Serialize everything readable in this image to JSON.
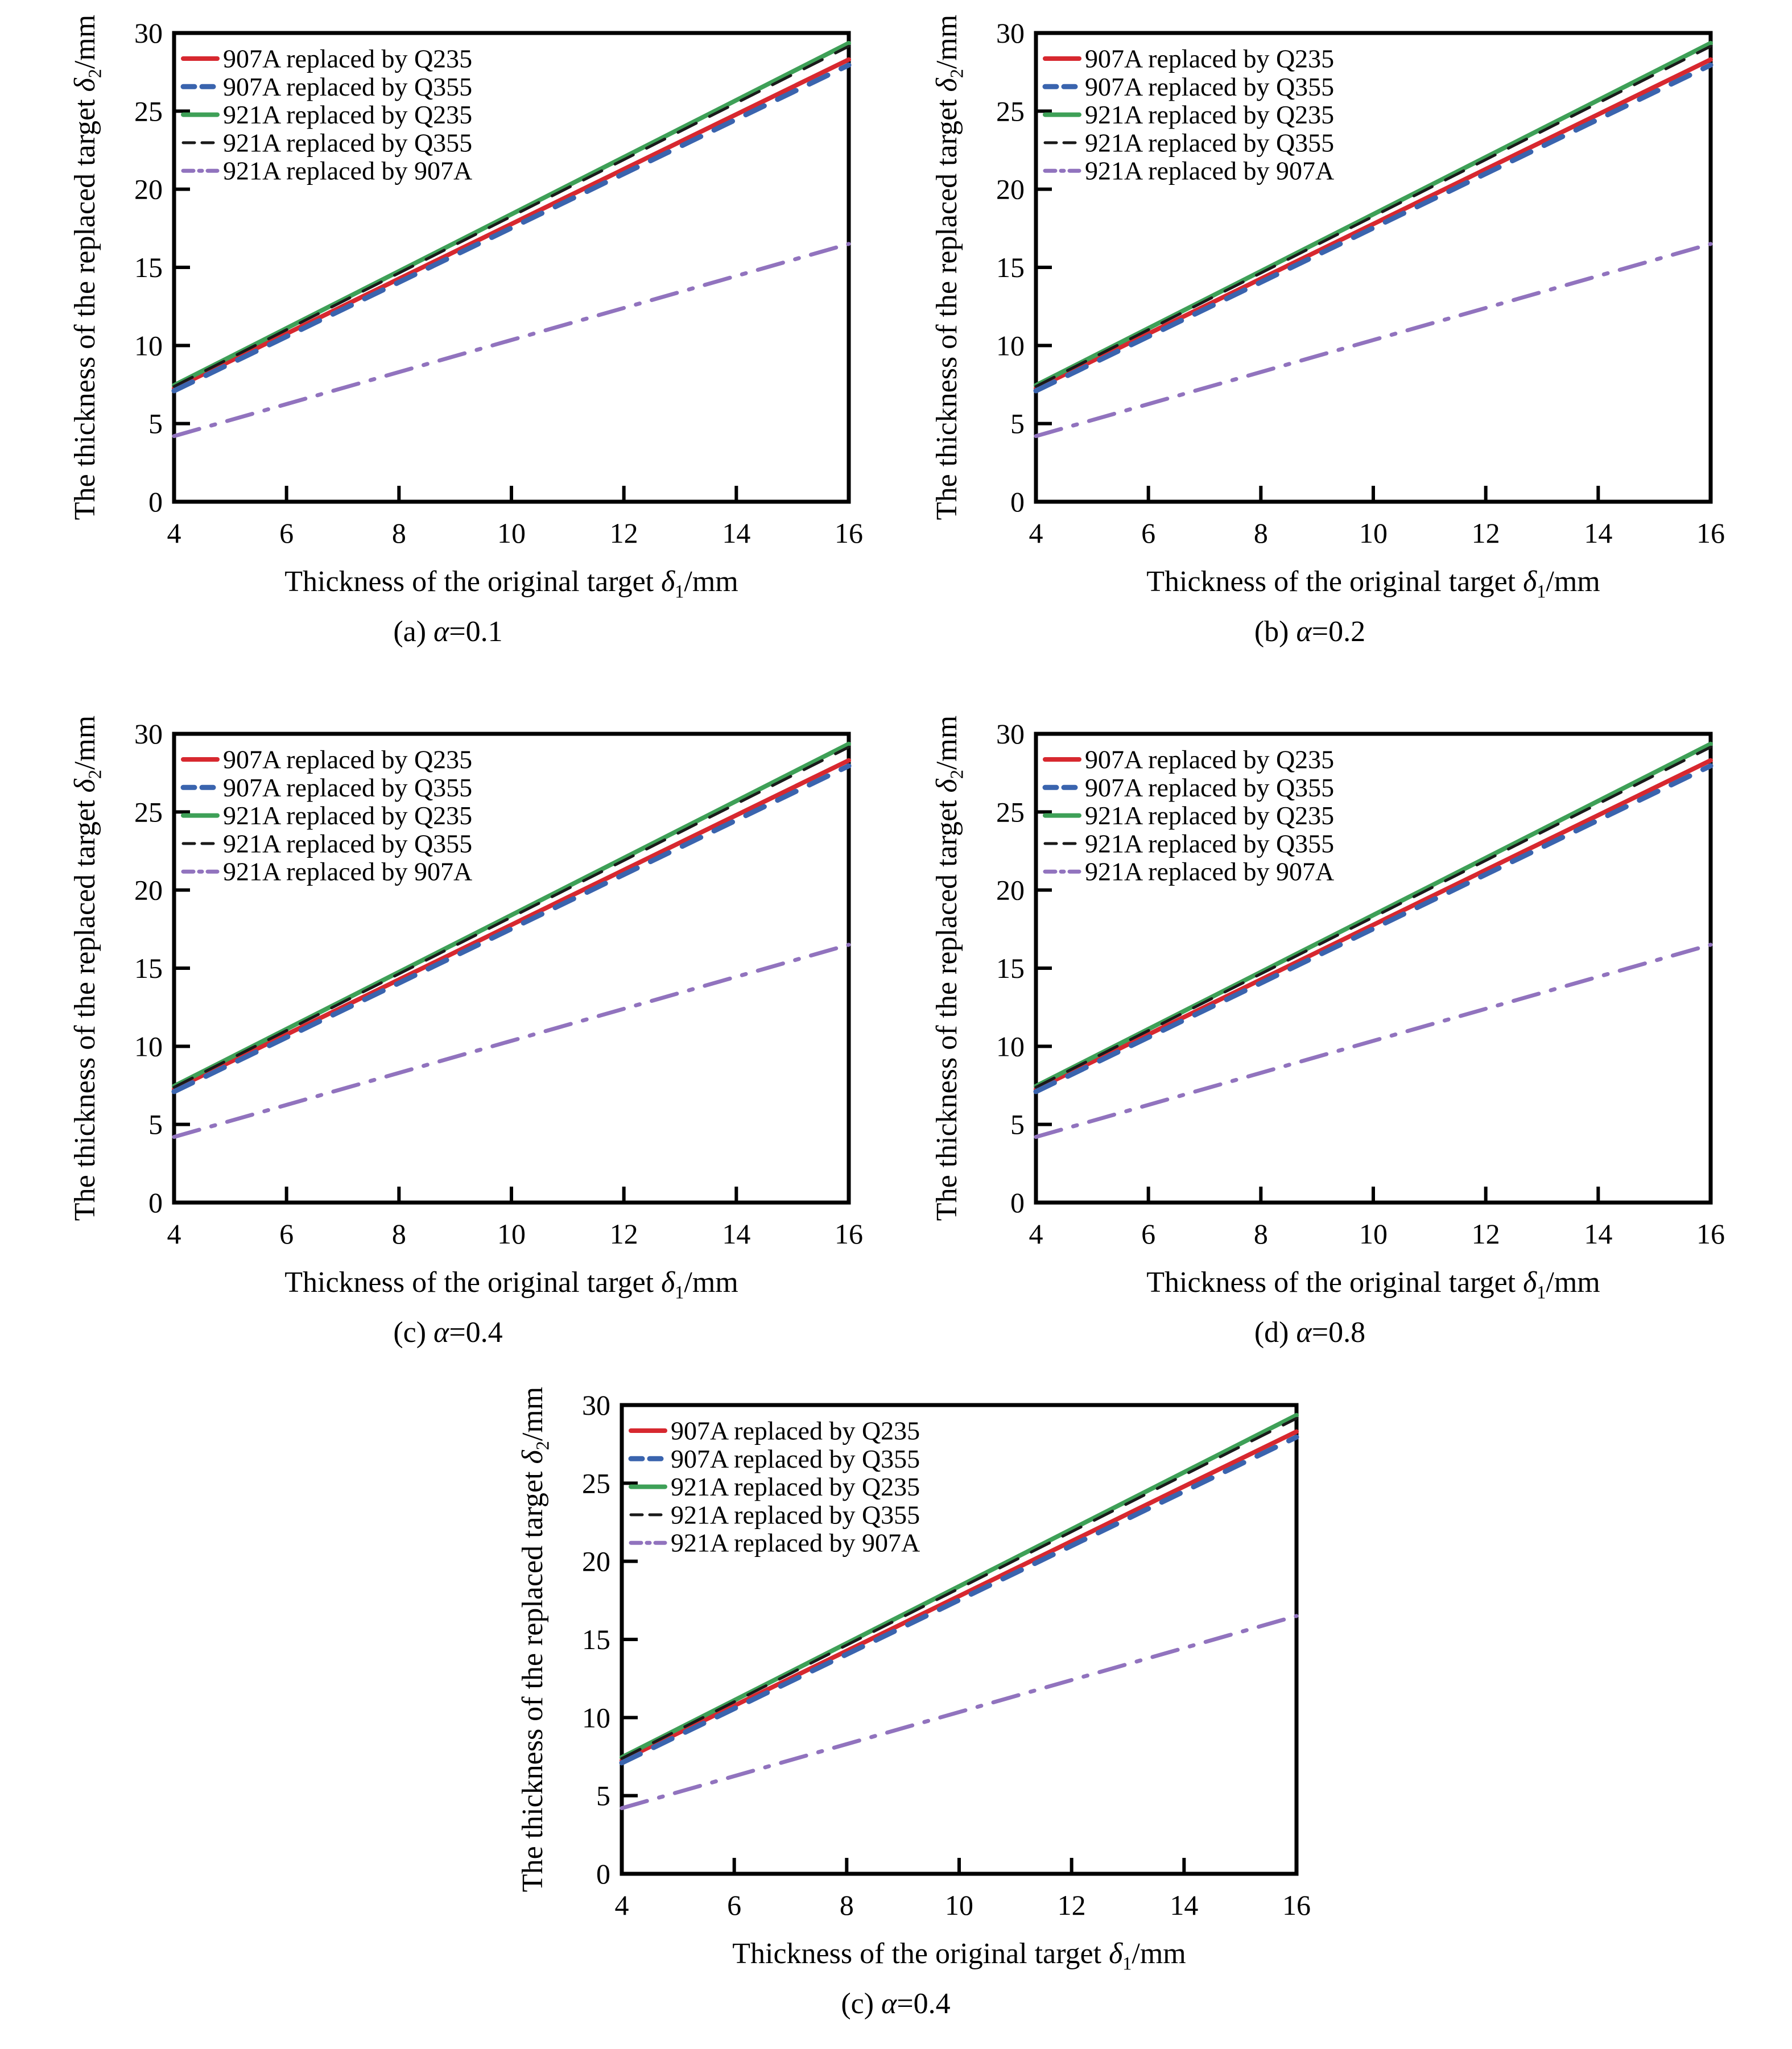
{
  "page": {
    "background": "#ffffff",
    "text_color": "#000000"
  },
  "axis": {
    "xlabel": {
      "main": "Thickness of the original target ",
      "symbol": "δ",
      "sub": "1",
      "unit": "/mm"
    },
    "ylabel": {
      "main": "The thickness of the replaced target ",
      "symbol": "δ",
      "sub": "2",
      "unit": "/mm"
    }
  },
  "chart_data": [
    {
      "id": "a",
      "type": "line",
      "subtitle": {
        "prefix": "(a) ",
        "symbol": "α",
        "value": "=0.1"
      },
      "xlabel": "Thickness of the original target δ1/mm",
      "ylabel": "The thickness of the replaced target δ2/mm",
      "xlim": [
        4,
        16
      ],
      "ylim": [
        0,
        30
      ],
      "x_ticks": [
        4,
        6,
        8,
        10,
        12,
        14,
        16
      ],
      "y_ticks": [
        0,
        5,
        10,
        15,
        20,
        25,
        30
      ],
      "grid": false,
      "legend_position": "upper-left",
      "series": [
        {
          "label": "907A replaced by Q235",
          "color": "#d7282f",
          "style": "solid",
          "width": 8,
          "x": [
            4,
            16
          ],
          "y": [
            7.25,
            28.3
          ]
        },
        {
          "label": "907A replaced by Q355",
          "color": "#3a64ae",
          "style": "dashed",
          "width": 9,
          "x": [
            4,
            16
          ],
          "y": [
            7.1,
            27.95
          ]
        },
        {
          "label": "921A replaced by Q235",
          "color": "#3ea057",
          "style": "solid",
          "width": 8,
          "x": [
            4,
            16
          ],
          "y": [
            7.45,
            29.35
          ]
        },
        {
          "label": "921A replaced by Q355",
          "color": "#1a1a1a",
          "style": "dashed",
          "width": 5,
          "x": [
            4,
            16
          ],
          "y": [
            7.38,
            29.15
          ]
        },
        {
          "label": "921A replaced by 907A",
          "color": "#9173be",
          "style": "dashdot",
          "width": 7,
          "x": [
            4,
            16
          ],
          "y": [
            4.2,
            16.5
          ]
        }
      ]
    },
    {
      "id": "b",
      "type": "line",
      "subtitle": {
        "prefix": "(b) ",
        "symbol": "α",
        "value": "=0.2"
      },
      "xlabel": "Thickness of the original target δ1/mm",
      "ylabel": "The thickness of the replaced target δ2/mm",
      "xlim": [
        4,
        16
      ],
      "ylim": [
        0,
        30
      ],
      "x_ticks": [
        4,
        6,
        8,
        10,
        12,
        14,
        16
      ],
      "y_ticks": [
        0,
        5,
        10,
        15,
        20,
        25,
        30
      ],
      "grid": false,
      "legend_position": "upper-left",
      "series": [
        {
          "label": "907A replaced by Q235",
          "color": "#d7282f",
          "style": "solid",
          "width": 8,
          "x": [
            4,
            16
          ],
          "y": [
            7.25,
            28.3
          ]
        },
        {
          "label": "907A replaced by Q355",
          "color": "#3a64ae",
          "style": "dashed",
          "width": 9,
          "x": [
            4,
            16
          ],
          "y": [
            7.1,
            27.95
          ]
        },
        {
          "label": "921A replaced by Q235",
          "color": "#3ea057",
          "style": "solid",
          "width": 8,
          "x": [
            4,
            16
          ],
          "y": [
            7.45,
            29.35
          ]
        },
        {
          "label": "921A replaced by Q355",
          "color": "#1a1a1a",
          "style": "dashed",
          "width": 5,
          "x": [
            4,
            16
          ],
          "y": [
            7.38,
            29.15
          ]
        },
        {
          "label": "921A replaced by 907A",
          "color": "#9173be",
          "style": "dashdot",
          "width": 7,
          "x": [
            4,
            16
          ],
          "y": [
            4.2,
            16.5
          ]
        }
      ]
    },
    {
      "id": "c",
      "type": "line",
      "subtitle": {
        "prefix": "(c) ",
        "symbol": "α",
        "value": "=0.4"
      },
      "xlabel": "Thickness of the original target δ1/mm",
      "ylabel": "The thickness of the replaced target δ2/mm",
      "xlim": [
        4,
        16
      ],
      "ylim": [
        0,
        30
      ],
      "x_ticks": [
        4,
        6,
        8,
        10,
        12,
        14,
        16
      ],
      "y_ticks": [
        0,
        5,
        10,
        15,
        20,
        25,
        30
      ],
      "grid": false,
      "legend_position": "upper-left",
      "series": [
        {
          "label": "907A replaced by Q235",
          "color": "#d7282f",
          "style": "solid",
          "width": 8,
          "x": [
            4,
            16
          ],
          "y": [
            7.25,
            28.3
          ]
        },
        {
          "label": "907A replaced by Q355",
          "color": "#3a64ae",
          "style": "dashed",
          "width": 9,
          "x": [
            4,
            16
          ],
          "y": [
            7.1,
            27.95
          ]
        },
        {
          "label": "921A replaced by Q235",
          "color": "#3ea057",
          "style": "solid",
          "width": 8,
          "x": [
            4,
            16
          ],
          "y": [
            7.45,
            29.35
          ]
        },
        {
          "label": "921A replaced by Q355",
          "color": "#1a1a1a",
          "style": "dashed",
          "width": 5,
          "x": [
            4,
            16
          ],
          "y": [
            7.38,
            29.15
          ]
        },
        {
          "label": "921A replaced by 907A",
          "color": "#9173be",
          "style": "dashdot",
          "width": 7,
          "x": [
            4,
            16
          ],
          "y": [
            4.2,
            16.5
          ]
        }
      ]
    },
    {
      "id": "d",
      "type": "line",
      "subtitle": {
        "prefix": "(d) ",
        "symbol": "α",
        "value": "=0.8"
      },
      "xlabel": "Thickness of the original target δ1/mm",
      "ylabel": "The thickness of the replaced target δ2/mm",
      "xlim": [
        4,
        16
      ],
      "ylim": [
        0,
        30
      ],
      "x_ticks": [
        4,
        6,
        8,
        10,
        12,
        14,
        16
      ],
      "y_ticks": [
        0,
        5,
        10,
        15,
        20,
        25,
        30
      ],
      "grid": false,
      "legend_position": "upper-left",
      "series": [
        {
          "label": "907A replaced by Q235",
          "color": "#d7282f",
          "style": "solid",
          "width": 8,
          "x": [
            4,
            16
          ],
          "y": [
            7.25,
            28.3
          ]
        },
        {
          "label": "907A replaced by Q355",
          "color": "#3a64ae",
          "style": "dashed",
          "width": 9,
          "x": [
            4,
            16
          ],
          "y": [
            7.1,
            27.95
          ]
        },
        {
          "label": "921A replaced by Q235",
          "color": "#3ea057",
          "style": "solid",
          "width": 8,
          "x": [
            4,
            16
          ],
          "y": [
            7.45,
            29.35
          ]
        },
        {
          "label": "921A replaced by Q355",
          "color": "#1a1a1a",
          "style": "dashed",
          "width": 5,
          "x": [
            4,
            16
          ],
          "y": [
            7.38,
            29.15
          ]
        },
        {
          "label": "921A replaced by 907A",
          "color": "#9173be",
          "style": "dashdot",
          "width": 7,
          "x": [
            4,
            16
          ],
          "y": [
            4.2,
            16.5
          ]
        }
      ]
    },
    {
      "id": "e",
      "type": "line",
      "subtitle": {
        "prefix": "(c) ",
        "symbol": "α",
        "value": "=0.4"
      },
      "xlabel": "Thickness of the original target δ1/mm",
      "ylabel": "The thickness of the replaced target δ2/mm",
      "xlim": [
        4,
        16
      ],
      "ylim": [
        0,
        30
      ],
      "x_ticks": [
        4,
        6,
        8,
        10,
        12,
        14,
        16
      ],
      "y_ticks": [
        0,
        5,
        10,
        15,
        20,
        25,
        30
      ],
      "grid": false,
      "legend_position": "upper-left",
      "series": [
        {
          "label": "907A replaced by Q235",
          "color": "#d7282f",
          "style": "solid",
          "width": 8,
          "x": [
            4,
            16
          ],
          "y": [
            7.25,
            28.3
          ]
        },
        {
          "label": "907A replaced by Q355",
          "color": "#3a64ae",
          "style": "dashed",
          "width": 9,
          "x": [
            4,
            16
          ],
          "y": [
            7.1,
            27.95
          ]
        },
        {
          "label": "921A replaced by Q235",
          "color": "#3ea057",
          "style": "solid",
          "width": 8,
          "x": [
            4,
            16
          ],
          "y": [
            7.45,
            29.35
          ]
        },
        {
          "label": "921A replaced by Q355",
          "color": "#1a1a1a",
          "style": "dashed",
          "width": 5,
          "x": [
            4,
            16
          ],
          "y": [
            7.38,
            29.15
          ]
        },
        {
          "label": "921A replaced by 907A",
          "color": "#9173be",
          "style": "dashdot",
          "width": 7,
          "x": [
            4,
            16
          ],
          "y": [
            4.2,
            16.5
          ]
        }
      ]
    }
  ]
}
